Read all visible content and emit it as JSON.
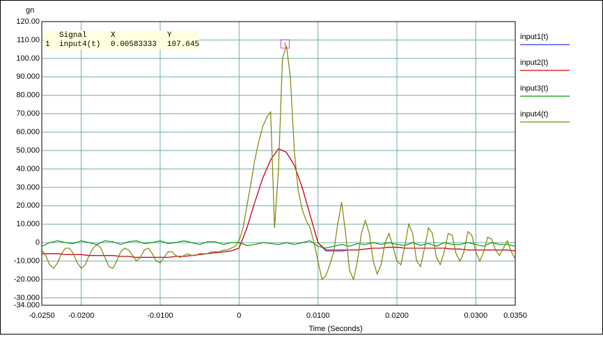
{
  "chart_data": {
    "type": "line",
    "y_label": "gn",
    "x_label": "Time (Seconds)",
    "xlim": [
      -0.025,
      0.035
    ],
    "ylim": [
      -34,
      120
    ],
    "grid": true,
    "legend": "right",
    "xticks": [
      {
        "value": -0.025,
        "label": "-0.0250"
      },
      {
        "value": -0.02,
        "label": "-0.0200"
      },
      {
        "value": -0.01,
        "label": "-0.0100"
      },
      0,
      {
        "value": 0.01,
        "label": "0.0100"
      },
      {
        "value": 0.02,
        "label": "0.0200"
      },
      {
        "value": 0.03,
        "label": "0.0300"
      },
      {
        "value": 0.035,
        "label": "0.0350"
      }
    ],
    "yticks": [
      {
        "value": -34,
        "label": "-34.000"
      },
      {
        "value": -30,
        "label": "-30.000"
      },
      {
        "value": -20,
        "label": "-20.000"
      },
      {
        "value": -10,
        "label": "-10.000"
      },
      0,
      {
        "value": 10,
        "label": "10.000"
      },
      {
        "value": 20,
        "label": "20.000"
      },
      {
        "value": 30,
        "label": "30.000"
      },
      {
        "value": 40,
        "label": "40.000"
      },
      {
        "value": 50,
        "label": "50.000"
      },
      {
        "value": 60,
        "label": "60.000"
      },
      {
        "value": 70,
        "label": "70.000"
      },
      {
        "value": 80,
        "label": "80.000"
      },
      {
        "value": 90,
        "label": "90.000"
      },
      {
        "value": 100,
        "label": "100.00"
      },
      {
        "value": 110,
        "label": "110.00"
      },
      {
        "value": 120,
        "label": "120.00"
      }
    ],
    "x": [
      -0.025,
      -0.024,
      -0.023,
      -0.022,
      -0.021,
      -0.02,
      -0.019,
      -0.018,
      -0.017,
      -0.016,
      -0.015,
      -0.014,
      -0.013,
      -0.012,
      -0.011,
      -0.01,
      -0.009,
      -0.008,
      -0.007,
      -0.006,
      -0.005,
      -0.004,
      -0.003,
      -0.002,
      -0.001,
      0,
      0.001,
      0.002,
      0.003,
      0.004,
      0.005,
      0.006,
      0.007,
      0.008,
      0.009,
      0.01,
      0.011,
      0.012,
      0.013,
      0.014,
      0.015,
      0.016,
      0.017,
      0.018,
      0.019,
      0.02,
      0.021,
      0.022,
      0.023,
      0.024,
      0.025,
      0.026,
      0.027,
      0.028,
      0.029,
      0.03,
      0.031,
      0.032,
      0.033,
      0.034,
      0.035
    ],
    "series": [
      {
        "name": "input1(t)",
        "color": "#3333ff",
        "values": [
          -6,
          -6,
          -6,
          -6.5,
          -6.5,
          -6.5,
          -7,
          -7,
          -7,
          -7,
          -7.5,
          -7.5,
          -8,
          -8,
          -8,
          -8,
          -8,
          -7.5,
          -7.5,
          -7,
          -6.5,
          -6,
          -5.5,
          -5,
          -4.5,
          -3,
          8,
          22,
          35,
          45,
          51,
          49,
          42,
          30,
          15,
          0,
          -4.5,
          -4.5,
          -4.5,
          -4,
          -4,
          -3.5,
          -3,
          -3,
          -2.5,
          -2.5,
          -3,
          -3,
          -3,
          -3,
          -3,
          -3,
          -3.5,
          -3.5,
          -4,
          -4,
          -4,
          -4,
          -4,
          -4,
          -4.5
        ]
      },
      {
        "name": "input2(t)",
        "color": "#dd0000",
        "values": [
          -6,
          -6,
          -6,
          -6.5,
          -6.5,
          -6.5,
          -7,
          -7,
          -7,
          -7,
          -7.5,
          -7.5,
          -8,
          -8,
          -8,
          -8,
          -8,
          -7.5,
          -7.5,
          -7,
          -6.5,
          -6,
          -5.5,
          -5,
          -4.5,
          -3,
          8,
          22,
          35,
          45,
          51,
          49,
          42,
          30,
          15,
          0,
          -4,
          -4,
          -4,
          -4,
          -4,
          -3.5,
          -3,
          -3,
          -2.5,
          -2.5,
          -3,
          -3,
          -3,
          -3,
          -3,
          -3,
          -3.5,
          -3.5,
          -4,
          -4,
          -4,
          -4,
          -4,
          -4,
          -4.5
        ]
      },
      {
        "name": "input3(t)",
        "color": "#009900",
        "values": [
          -2,
          0,
          1,
          0,
          -0.5,
          1,
          0,
          -1,
          1,
          0.5,
          -1,
          0.5,
          1,
          -0.5,
          0,
          1,
          -0.5,
          0,
          1,
          0,
          -1,
          0.5,
          0.5,
          -1,
          0,
          0,
          -1.5,
          -1,
          0,
          -0.5,
          -1,
          0,
          -1,
          0,
          1,
          -2,
          -3,
          -2,
          -1,
          -2,
          -0.5,
          -1,
          0,
          -1,
          0,
          -1,
          -1.5,
          0,
          -1.5,
          -0.5,
          -2,
          0,
          -1,
          -1,
          0,
          -1,
          -2,
          0,
          -1,
          -1,
          -2
        ]
      },
      {
        "name": "input4(t)",
        "color": "#808000",
        "x": [
          -0.025,
          -0.0245,
          -0.024,
          -0.0235,
          -0.023,
          -0.0225,
          -0.022,
          -0.0215,
          -0.021,
          -0.0205,
          -0.02,
          -0.0195,
          -0.019,
          -0.0185,
          -0.018,
          -0.0175,
          -0.017,
          -0.0165,
          -0.016,
          -0.0155,
          -0.015,
          -0.0145,
          -0.014,
          -0.0135,
          -0.013,
          -0.0125,
          -0.012,
          -0.0115,
          -0.011,
          -0.0105,
          -0.01,
          -0.0095,
          -0.009,
          -0.0085,
          -0.008,
          -0.0075,
          -0.007,
          -0.0065,
          -0.006,
          -0.0055,
          -0.005,
          -0.0045,
          -0.004,
          -0.0035,
          -0.003,
          -0.0025,
          -0.002,
          -0.0015,
          -0.001,
          -0.0005,
          0,
          0.0005,
          0.001,
          0.0015,
          0.002,
          0.0025,
          0.003,
          0.0035,
          0.004,
          0.0045,
          0.005,
          0.0055,
          0.006,
          0.0065,
          0.007,
          0.0075,
          0.008,
          0.0085,
          0.009,
          0.0095,
          0.01,
          0.0105,
          0.011,
          0.0115,
          0.012,
          0.0125,
          0.013,
          0.0135,
          0.014,
          0.0145,
          0.015,
          0.0155,
          0.016,
          0.0165,
          0.017,
          0.0175,
          0.018,
          0.0185,
          0.019,
          0.0195,
          0.02,
          0.0205,
          0.021,
          0.0215,
          0.022,
          0.0225,
          0.023,
          0.0235,
          0.024,
          0.0245,
          0.025,
          0.0255,
          0.026,
          0.0265,
          0.027,
          0.0275,
          0.028,
          0.0285,
          0.029,
          0.0295,
          0.03,
          0.0305,
          0.031,
          0.0315,
          0.032,
          0.0325,
          0.033,
          0.0335,
          0.034,
          0.0345,
          0.035
        ],
        "values": [
          -4,
          -7,
          -12,
          -14,
          -11,
          -6,
          -3,
          -3,
          -6,
          -11,
          -14,
          -12,
          -7,
          -3,
          -1,
          -3,
          -8,
          -13,
          -14,
          -10,
          -5,
          -3,
          -4,
          -7,
          -10,
          -8,
          -4,
          -3,
          -6,
          -10,
          -11,
          -8,
          -5,
          -5,
          -7,
          -8,
          -7,
          -6,
          -7,
          -7,
          -6,
          -6,
          -6,
          -5,
          -5,
          -5,
          -4,
          -4,
          -3,
          -2,
          1,
          8,
          20,
          32,
          45,
          55,
          63,
          68,
          71,
          8,
          40,
          100,
          107,
          90,
          50,
          28,
          18,
          12,
          8,
          0,
          -10,
          -20,
          -18,
          -12,
          -5,
          10,
          22,
          5,
          -15,
          -20,
          -10,
          5,
          12,
          5,
          -10,
          -17,
          -12,
          0,
          5,
          -2,
          -10,
          -12,
          -2,
          10,
          5,
          -10,
          -13,
          -3,
          8,
          5,
          -8,
          -12,
          -5,
          5,
          4,
          -6,
          -10,
          -5,
          6,
          4,
          -5,
          -10,
          -5,
          3,
          2,
          -4,
          -7,
          -3,
          1,
          -5,
          -9
        ]
      }
    ],
    "cursor": {
      "headers": [
        "Signal",
        "X",
        "Y"
      ],
      "index": 1,
      "signal": "input4(t)",
      "x": 0.00583333,
      "y": 107.645
    }
  }
}
